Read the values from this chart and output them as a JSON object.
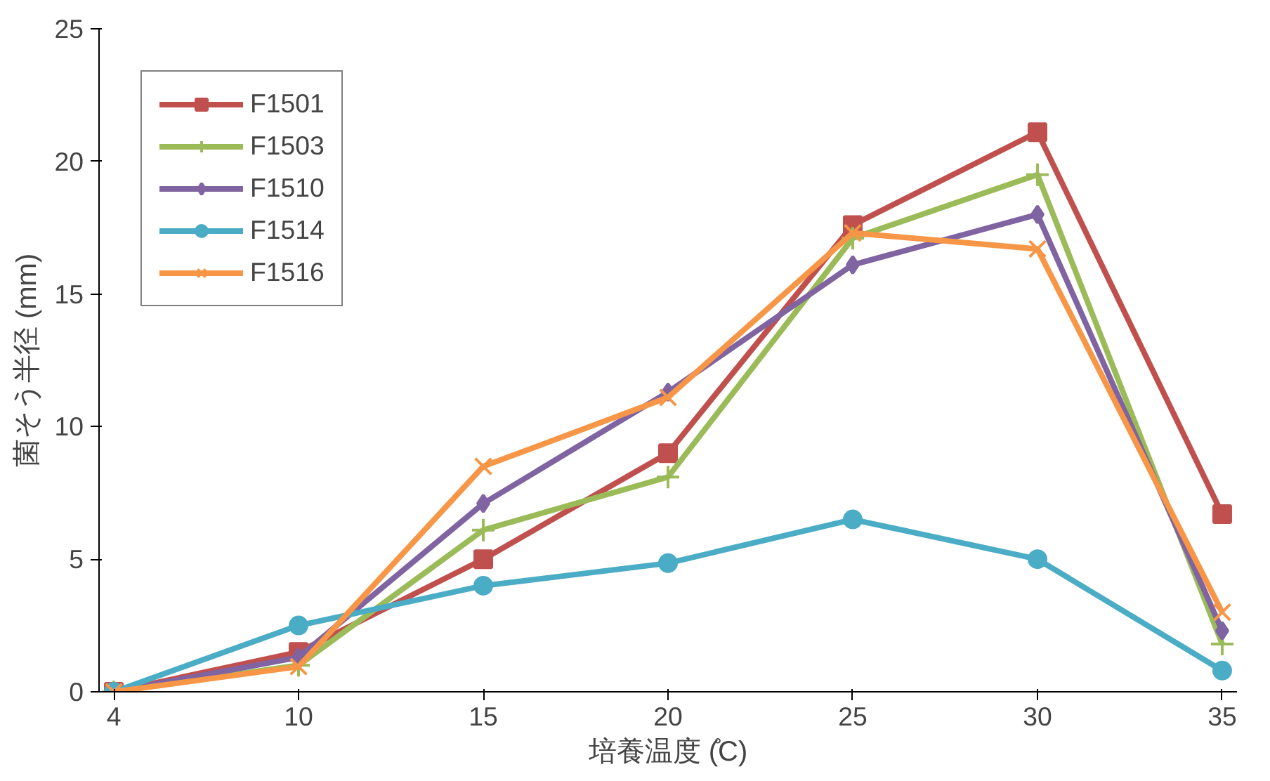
{
  "chart_data": {
    "type": "line",
    "xlabel": "培養温度 (̊C)",
    "ylabel": "菌そう半径 (mm)",
    "categories": [
      "4",
      "10",
      "15",
      "20",
      "25",
      "30",
      "35"
    ],
    "ylim": [
      0,
      25
    ],
    "yticks": [
      0,
      5,
      10,
      15,
      20,
      25
    ],
    "grid": false,
    "legend": "top left",
    "series": [
      {
        "name": "F1501",
        "color": "#c0504d",
        "marker": "square",
        "values": [
          0,
          1.5,
          5,
          9,
          17.6,
          21.1,
          6.7
        ]
      },
      {
        "name": "F1503",
        "color": "#9bbb59",
        "marker": "cross",
        "values": [
          0,
          1.0,
          6.1,
          8.1,
          17.1,
          19.5,
          1.8
        ]
      },
      {
        "name": "F1510",
        "color": "#8064a2",
        "marker": "diamond",
        "values": [
          0,
          1.3,
          7.1,
          11.3,
          16.1,
          18.0,
          2.3
        ]
      },
      {
        "name": "F1514",
        "color": "#4bacc6",
        "marker": "circle",
        "values": [
          0,
          2.5,
          4.0,
          4.85,
          6.5,
          5.0,
          0.8
        ]
      },
      {
        "name": "F1516",
        "color": "#f79646",
        "marker": "x",
        "values": [
          0,
          0.95,
          8.5,
          11.1,
          17.3,
          16.7,
          3.0
        ]
      }
    ]
  }
}
